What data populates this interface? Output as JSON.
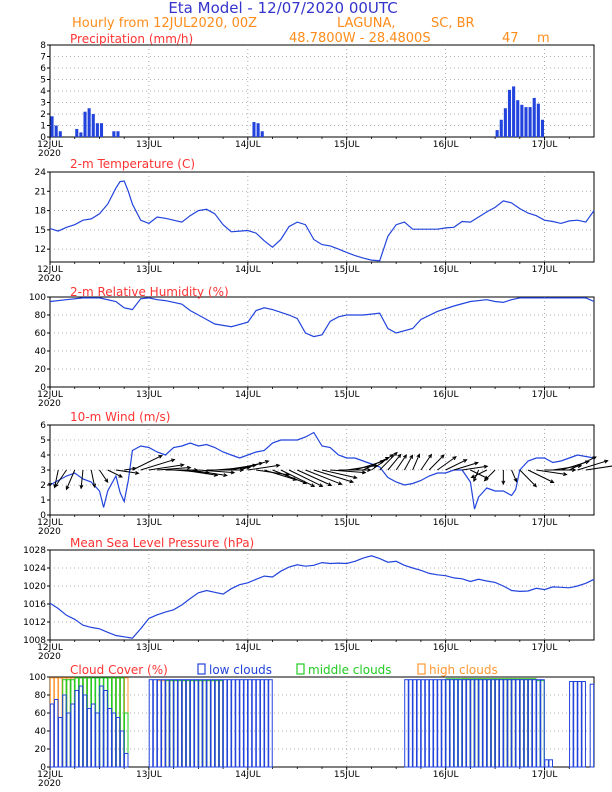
{
  "header": {
    "line1": "Eta Model - 12/07/2020 00UTC",
    "line2": "Hourly from 12JUL2020, 00Z",
    "location": "LAGUNA,",
    "region": "SC, BR",
    "coords": "48.7800W - 28.4800S",
    "elevation": "47",
    "elevation_unit": "m"
  },
  "colors": {
    "title_blue": "#3333cc",
    "header_orange": "#ff8c1a",
    "panel_title_red": "#ff3333",
    "series_blue": "#2244dd",
    "low_clouds": "#2244dd",
    "middle_clouds": "#22cc22",
    "high_clouds": "#ff9933",
    "grid": "#999999"
  },
  "x_axis": {
    "tick_labels": [
      "12JUL",
      "13JUL",
      "14JUL",
      "15JUL",
      "16JUL",
      "17JUL"
    ],
    "year_label": "2020",
    "hours_total": 132
  },
  "chart_data": [
    {
      "id": "precip",
      "type": "bar",
      "title": "Precipitation (mm/h)",
      "ylim": [
        0,
        8
      ],
      "yticks": [
        0,
        1,
        2,
        3,
        4,
        5,
        6,
        7,
        8
      ],
      "hours": [
        0,
        1,
        2,
        6,
        7,
        8,
        9,
        10,
        11,
        12,
        15,
        16,
        49,
        50,
        51,
        108,
        109,
        110,
        111,
        112,
        113,
        114,
        115,
        116,
        117,
        118,
        119
      ],
      "values": [
        1.8,
        1.0,
        0.5,
        0.7,
        0.4,
        2.2,
        2.5,
        2.0,
        1.2,
        1.2,
        0.5,
        0.5,
        1.3,
        1.2,
        0.5,
        0.6,
        1.5,
        2.5,
        4.1,
        4.4,
        3.2,
        2.8,
        2.6,
        2.6,
        3.4,
        2.9,
        1.5
      ]
    },
    {
      "id": "temp",
      "type": "line",
      "title": "2-m Temperature (C)",
      "ylim": [
        10,
        24
      ],
      "yticks": [
        12,
        15,
        18,
        21,
        24
      ],
      "points": [
        [
          0,
          15.2
        ],
        [
          2,
          14.8
        ],
        [
          4,
          15.4
        ],
        [
          6,
          15.8
        ],
        [
          8,
          16.5
        ],
        [
          10,
          16.7
        ],
        [
          12,
          17.5
        ],
        [
          14,
          19.0
        ],
        [
          16,
          21.5
        ],
        [
          17,
          22.5
        ],
        [
          18,
          22.6
        ],
        [
          19,
          21.0
        ],
        [
          20,
          19.0
        ],
        [
          22,
          16.5
        ],
        [
          24,
          16.0
        ],
        [
          26,
          17.0
        ],
        [
          28,
          16.8
        ],
        [
          30,
          16.5
        ],
        [
          32,
          16.2
        ],
        [
          34,
          17.2
        ],
        [
          36,
          18.0
        ],
        [
          38,
          18.2
        ],
        [
          40,
          17.5
        ],
        [
          42,
          15.8
        ],
        [
          44,
          14.7
        ],
        [
          46,
          14.8
        ],
        [
          48,
          14.9
        ],
        [
          50,
          14.5
        ],
        [
          52,
          13.3
        ],
        [
          54,
          12.3
        ],
        [
          56,
          13.5
        ],
        [
          58,
          15.5
        ],
        [
          60,
          16.2
        ],
        [
          62,
          15.8
        ],
        [
          64,
          13.5
        ],
        [
          66,
          12.7
        ],
        [
          68,
          12.5
        ],
        [
          70,
          12.0
        ],
        [
          72,
          11.5
        ],
        [
          74,
          11.0
        ],
        [
          76,
          10.6
        ],
        [
          78,
          10.3
        ],
        [
          80,
          10.2
        ],
        [
          82,
          14.0
        ],
        [
          84,
          15.8
        ],
        [
          86,
          16.2
        ],
        [
          88,
          15.1
        ],
        [
          90,
          15.1
        ],
        [
          94,
          15.1
        ],
        [
          96,
          15.3
        ],
        [
          98,
          15.4
        ],
        [
          100,
          16.3
        ],
        [
          102,
          16.2
        ],
        [
          104,
          17.0
        ],
        [
          106,
          17.8
        ],
        [
          108,
          18.5
        ],
        [
          110,
          19.5
        ],
        [
          112,
          19.2
        ],
        [
          114,
          18.3
        ],
        [
          116,
          17.6
        ],
        [
          118,
          17.2
        ],
        [
          120,
          16.5
        ],
        [
          122,
          16.3
        ],
        [
          124,
          16.0
        ],
        [
          126,
          16.4
        ],
        [
          128,
          16.5
        ],
        [
          130,
          16.2
        ],
        [
          132,
          18.0
        ]
      ]
    },
    {
      "id": "rh",
      "type": "line",
      "title": "2-m Relative Humidity (%)",
      "ylim": [
        0,
        100
      ],
      "yticks": [
        0,
        20,
        40,
        60,
        80,
        100
      ],
      "points": [
        [
          0,
          95
        ],
        [
          4,
          97
        ],
        [
          8,
          99
        ],
        [
          12,
          99
        ],
        [
          16,
          95
        ],
        [
          18,
          88
        ],
        [
          20,
          86
        ],
        [
          22,
          98
        ],
        [
          24,
          99
        ],
        [
          26,
          97
        ],
        [
          28,
          96
        ],
        [
          32,
          92
        ],
        [
          34,
          85
        ],
        [
          36,
          80
        ],
        [
          38,
          75
        ],
        [
          40,
          70
        ],
        [
          44,
          67
        ],
        [
          48,
          72
        ],
        [
          50,
          85
        ],
        [
          52,
          88
        ],
        [
          54,
          86
        ],
        [
          56,
          83
        ],
        [
          58,
          80
        ],
        [
          60,
          76
        ],
        [
          62,
          60
        ],
        [
          64,
          56
        ],
        [
          66,
          58
        ],
        [
          68,
          73
        ],
        [
          70,
          78
        ],
        [
          72,
          80
        ],
        [
          76,
          80
        ],
        [
          78,
          81
        ],
        [
          80,
          82
        ],
        [
          82,
          65
        ],
        [
          84,
          60
        ],
        [
          88,
          65
        ],
        [
          90,
          75
        ],
        [
          94,
          84
        ],
        [
          98,
          90
        ],
        [
          102,
          95
        ],
        [
          106,
          97
        ],
        [
          108,
          95
        ],
        [
          110,
          94
        ],
        [
          112,
          97
        ],
        [
          114,
          99
        ],
        [
          118,
          99
        ],
        [
          124,
          99
        ],
        [
          130,
          99
        ],
        [
          132,
          95
        ]
      ]
    },
    {
      "id": "wind",
      "type": "line",
      "title": "10-m Wind (m/s)",
      "ylim": [
        0,
        6
      ],
      "yticks": [
        0,
        1,
        2,
        3,
        4,
        5,
        6
      ],
      "points": [
        [
          0,
          2.0
        ],
        [
          2,
          2.3
        ],
        [
          4,
          2.6
        ],
        [
          6,
          2.8
        ],
        [
          8,
          2.4
        ],
        [
          10,
          2.2
        ],
        [
          12,
          1.6
        ],
        [
          13,
          0.5
        ],
        [
          14,
          1.6
        ],
        [
          16,
          2.6
        ],
        [
          17,
          1.5
        ],
        [
          18,
          0.9
        ],
        [
          19,
          2.3
        ],
        [
          20,
          4.3
        ],
        [
          22,
          4.6
        ],
        [
          24,
          4.5
        ],
        [
          26,
          4.2
        ],
        [
          28,
          4.0
        ],
        [
          30,
          4.5
        ],
        [
          32,
          4.6
        ],
        [
          34,
          4.8
        ],
        [
          36,
          4.6
        ],
        [
          38,
          4.7
        ],
        [
          40,
          4.5
        ],
        [
          42,
          4.2
        ],
        [
          44,
          4.0
        ],
        [
          46,
          3.8
        ],
        [
          48,
          4.0
        ],
        [
          50,
          4.2
        ],
        [
          52,
          4.3
        ],
        [
          54,
          4.8
        ],
        [
          56,
          5.0
        ],
        [
          58,
          5.0
        ],
        [
          60,
          5.0
        ],
        [
          62,
          5.2
        ],
        [
          64,
          5.5
        ],
        [
          66,
          4.6
        ],
        [
          68,
          4.5
        ],
        [
          70,
          4.0
        ],
        [
          72,
          3.8
        ],
        [
          74,
          3.8
        ],
        [
          76,
          3.6
        ],
        [
          78,
          3.4
        ],
        [
          80,
          3.2
        ],
        [
          82,
          2.5
        ],
        [
          84,
          2.2
        ],
        [
          86,
          2.0
        ],
        [
          88,
          2.1
        ],
        [
          90,
          2.3
        ],
        [
          92,
          2.6
        ],
        [
          94,
          2.8
        ],
        [
          96,
          2.8
        ],
        [
          98,
          3.0
        ],
        [
          100,
          3.0
        ],
        [
          102,
          2.2
        ],
        [
          103,
          0.4
        ],
        [
          104,
          1.2
        ],
        [
          106,
          1.8
        ],
        [
          108,
          1.6
        ],
        [
          110,
          1.6
        ],
        [
          112,
          1.3
        ],
        [
          113,
          1.7
        ],
        [
          114,
          3.0
        ],
        [
          116,
          3.6
        ],
        [
          118,
          3.8
        ],
        [
          120,
          3.8
        ],
        [
          122,
          3.5
        ],
        [
          124,
          3.6
        ],
        [
          126,
          3.8
        ],
        [
          128,
          4.0
        ],
        [
          130,
          3.9
        ],
        [
          132,
          3.8
        ]
      ],
      "vector_hours": [
        0,
        2,
        4,
        6,
        8,
        10,
        12,
        14,
        16,
        18,
        20,
        22,
        24,
        26,
        28,
        30,
        32,
        34,
        36,
        38,
        40,
        42,
        44,
        46,
        48,
        50,
        52,
        54,
        56,
        58,
        60,
        62,
        64,
        66,
        68,
        70,
        72,
        74,
        76,
        78,
        80,
        82,
        84,
        86,
        88,
        90,
        92,
        94,
        96,
        98,
        100,
        102,
        104,
        106,
        108,
        110,
        112,
        114,
        116,
        118,
        120,
        122,
        124,
        126,
        128,
        130
      ],
      "vector_to_deg": [
        180,
        190,
        210,
        200,
        185,
        170,
        150,
        120,
        100,
        80,
        60,
        70,
        80,
        85,
        90,
        95,
        100,
        100,
        95,
        90,
        85,
        80,
        75,
        70,
        80,
        100,
        110,
        115,
        120,
        120,
        118,
        115,
        110,
        105,
        95,
        90,
        80,
        70,
        60,
        50,
        40,
        35,
        30,
        25,
        20,
        30,
        40,
        50,
        60,
        70,
        80,
        120,
        200,
        240,
        220,
        180,
        160,
        140,
        120,
        100,
        90,
        80,
        70,
        60,
        70,
        80
      ]
    },
    {
      "id": "mslp",
      "type": "line",
      "title": "Mean Sea Level Pressure (hPa)",
      "ylim": [
        1008,
        1028
      ],
      "yticks": [
        1008,
        1012,
        1016,
        1020,
        1024,
        1028
      ],
      "points": [
        [
          0,
          1016.2
        ],
        [
          2,
          1015.0
        ],
        [
          4,
          1013.5
        ],
        [
          6,
          1012.6
        ],
        [
          8,
          1011.3
        ],
        [
          10,
          1010.8
        ],
        [
          12,
          1010.5
        ],
        [
          14,
          1009.7
        ],
        [
          16,
          1009.0
        ],
        [
          18,
          1008.7
        ],
        [
          20,
          1008.4
        ],
        [
          22,
          1010.5
        ],
        [
          24,
          1012.8
        ],
        [
          26,
          1013.6
        ],
        [
          28,
          1014.2
        ],
        [
          30,
          1014.7
        ],
        [
          32,
          1015.8
        ],
        [
          34,
          1017.2
        ],
        [
          36,
          1018.5
        ],
        [
          38,
          1019.0
        ],
        [
          40,
          1018.6
        ],
        [
          42,
          1018.2
        ],
        [
          44,
          1019.4
        ],
        [
          46,
          1020.3
        ],
        [
          48,
          1020.7
        ],
        [
          50,
          1021.5
        ],
        [
          52,
          1022.2
        ],
        [
          54,
          1022.0
        ],
        [
          56,
          1023.3
        ],
        [
          58,
          1024.2
        ],
        [
          60,
          1024.7
        ],
        [
          62,
          1024.4
        ],
        [
          64,
          1024.6
        ],
        [
          66,
          1025.2
        ],
        [
          68,
          1025.0
        ],
        [
          70,
          1025.1
        ],
        [
          72,
          1025.0
        ],
        [
          74,
          1025.5
        ],
        [
          76,
          1026.2
        ],
        [
          78,
          1026.7
        ],
        [
          80,
          1026.1
        ],
        [
          82,
          1025.3
        ],
        [
          84,
          1025.5
        ],
        [
          86,
          1024.6
        ],
        [
          88,
          1024.0
        ],
        [
          90,
          1023.5
        ],
        [
          92,
          1022.8
        ],
        [
          94,
          1022.5
        ],
        [
          96,
          1022.3
        ],
        [
          98,
          1021.8
        ],
        [
          100,
          1021.6
        ],
        [
          102,
          1021.0
        ],
        [
          104,
          1021.5
        ],
        [
          106,
          1021.1
        ],
        [
          108,
          1020.8
        ],
        [
          110,
          1020.0
        ],
        [
          112,
          1019.0
        ],
        [
          114,
          1018.8
        ],
        [
          116,
          1018.9
        ],
        [
          118,
          1019.5
        ],
        [
          120,
          1019.2
        ],
        [
          122,
          1019.8
        ],
        [
          124,
          1019.7
        ],
        [
          126,
          1019.6
        ],
        [
          128,
          1020.0
        ],
        [
          130,
          1020.6
        ],
        [
          132,
          1021.5
        ]
      ]
    },
    {
      "id": "cloud",
      "type": "bar",
      "title": "Cloud Cover (%)",
      "ylim": [
        0,
        100
      ],
      "yticks": [
        0,
        20,
        40,
        60,
        80,
        100
      ],
      "legend": [
        "low clouds",
        "middle clouds",
        "high clouds"
      ],
      "low_segments": [
        [
          0,
          10,
          [
            70,
            75,
            55,
            80,
            60,
            70,
            85,
            90,
            80,
            65
          ]
        ],
        [
          10,
          18,
          [
            70,
            60,
            90,
            85,
            65,
            60,
            55,
            40
          ]
        ],
        [
          18,
          19,
          [
            15
          ]
        ],
        [
          24,
          54,
          [
            97
          ]
        ],
        [
          86,
          120,
          [
            97
          ]
        ],
        [
          120,
          122,
          [
            8
          ]
        ],
        [
          126,
          130,
          [
            95
          ]
        ],
        [
          131,
          132,
          [
            92
          ]
        ]
      ],
      "mid_segments": [
        [
          3,
          6,
          [
            97
          ]
        ],
        [
          6,
          18,
          [
            99
          ]
        ],
        [
          18,
          19,
          [
            60
          ]
        ],
        [
          28,
          42,
          [
            96
          ]
        ],
        [
          96,
          118,
          [
            98
          ]
        ],
        [
          118,
          120,
          [
            96
          ]
        ]
      ],
      "high_segments": [
        [
          0,
          4,
          [
            99
          ]
        ],
        [
          4,
          10,
          [
            99
          ]
        ],
        [
          14,
          19,
          [
            99
          ]
        ],
        [
          26,
          42,
          [
            96
          ]
        ],
        [
          100,
          118,
          [
            98
          ]
        ]
      ]
    }
  ]
}
